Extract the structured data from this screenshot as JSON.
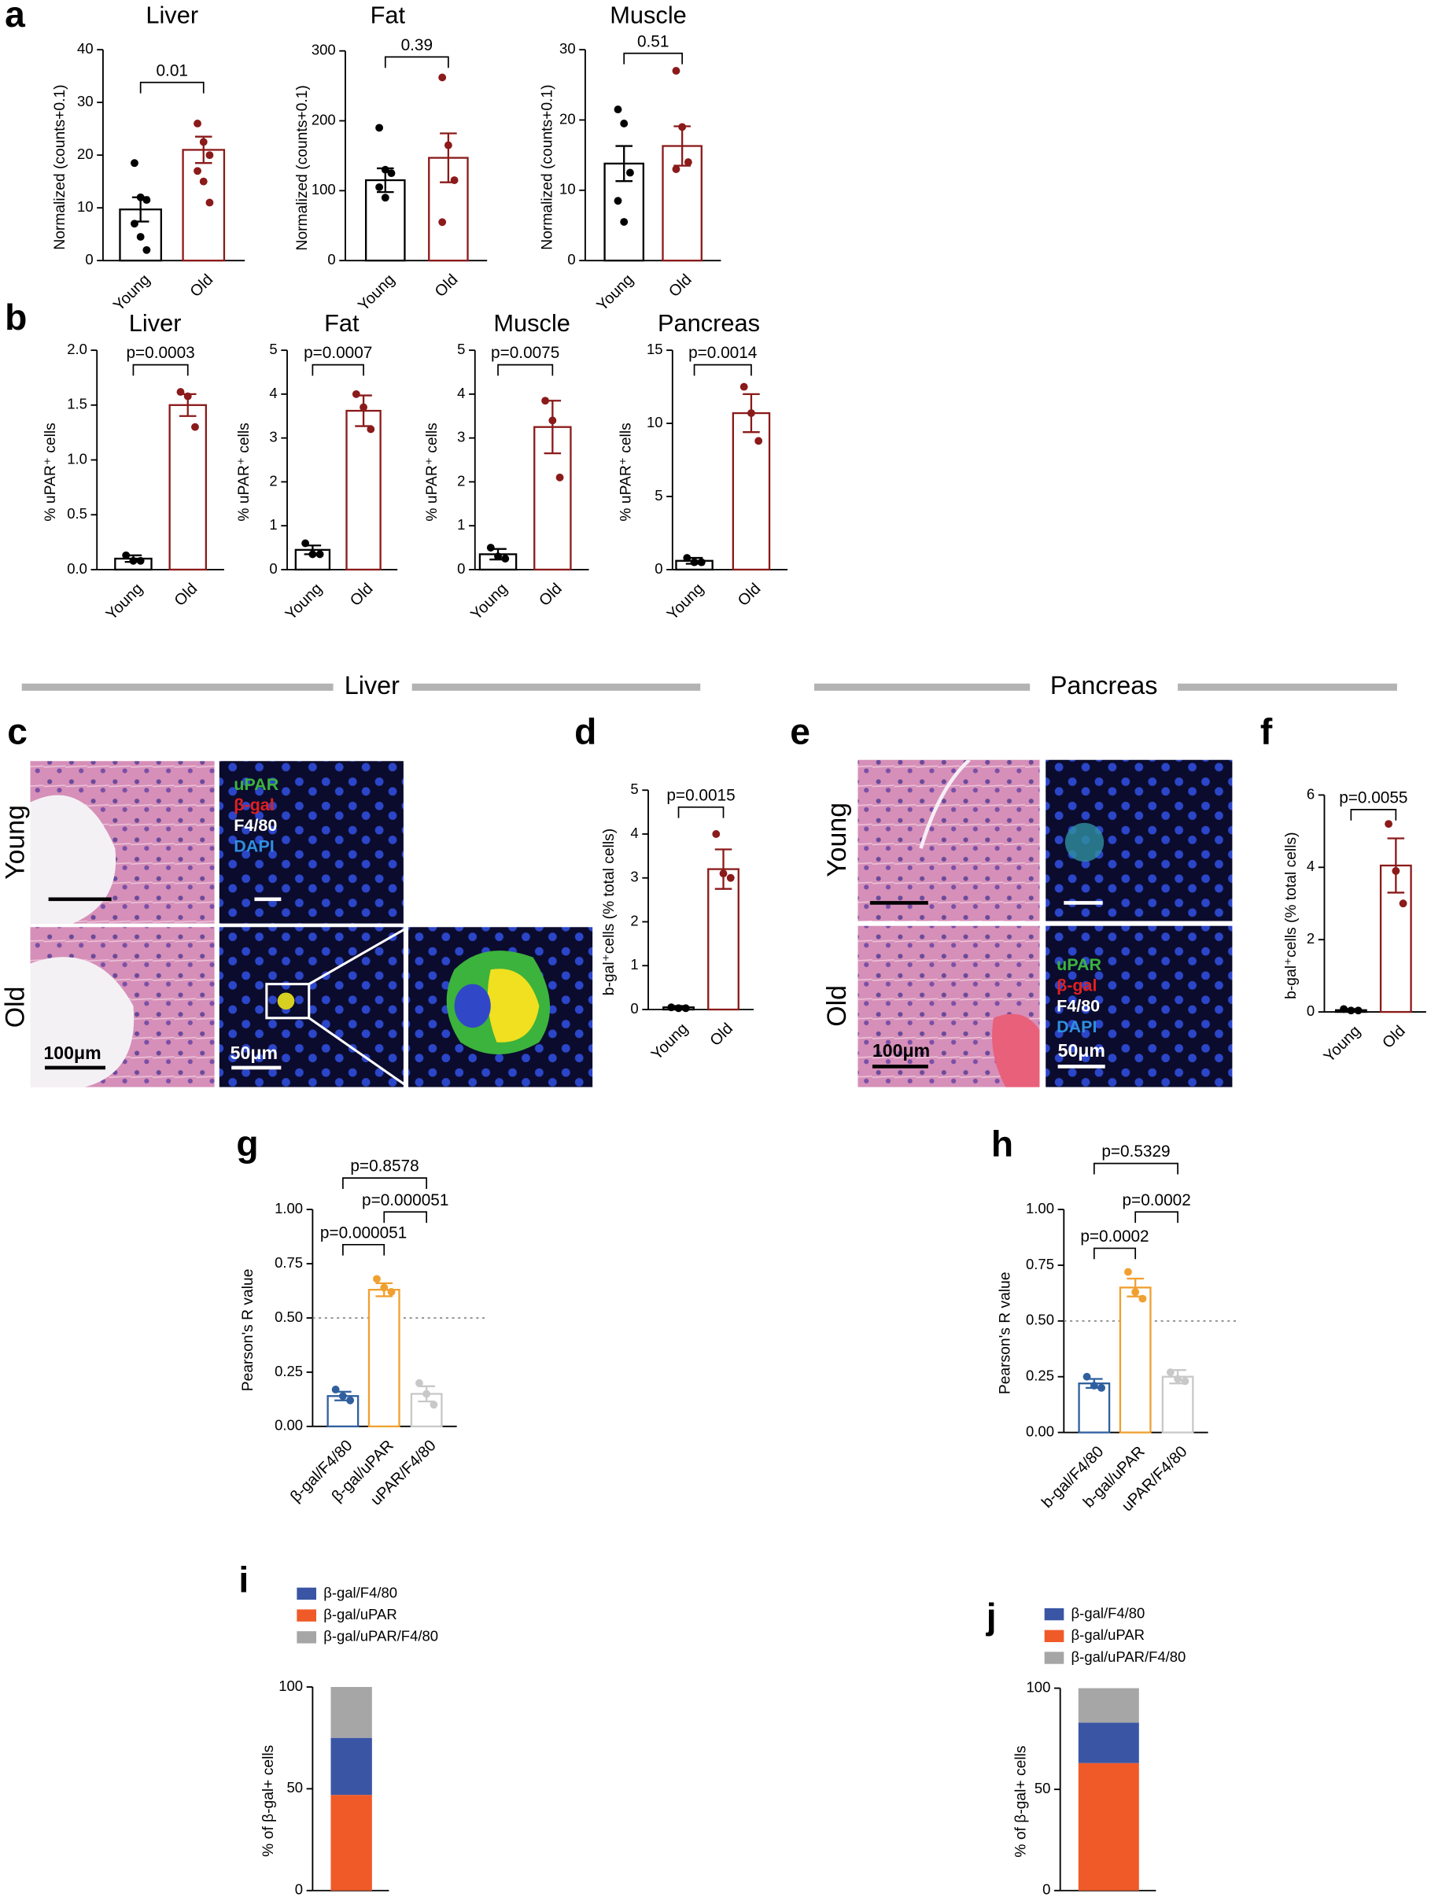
{
  "panels": [
    "a",
    "b",
    "c",
    "d",
    "e",
    "f",
    "g",
    "h",
    "i",
    "j"
  ],
  "sections": [
    "Liver",
    "Pancreas"
  ],
  "micrographs": {
    "c": {
      "rows": [
        "Young",
        "Old"
      ],
      "stains": [
        "uPAR",
        "β-gal",
        "F4/80",
        "DAPI"
      ],
      "scale_he": "100μm",
      "scale_fl": "50μm"
    },
    "e": {
      "rows": [
        "Young",
        "Old"
      ],
      "stains": [
        "uPAR",
        "β-gal",
        "F4/80",
        "DAPI"
      ],
      "scale_he": "100μm",
      "scale_fl": "50μm"
    }
  },
  "chart_data": [
    {
      "type": "bar",
      "title": "Liver",
      "ylabel": "Normalized (counts+0.1)",
      "categories": [
        "Young",
        "Old"
      ],
      "values": [
        9.7,
        21
      ],
      "errors": [
        2.3,
        2.5
      ],
      "points": [
        [
          18.5,
          12,
          11.5,
          7,
          4.5,
          2
        ],
        [
          26,
          22.5,
          20,
          17,
          15,
          11
        ]
      ],
      "colors": [
        "#000000",
        "#8b1a1a"
      ],
      "ylim": [
        0,
        40
      ],
      "yticks": [
        0,
        10,
        20,
        30,
        40
      ],
      "comparisons": [
        {
          "label": "0.01"
        }
      ]
    },
    {
      "type": "bar",
      "title": "Fat",
      "ylabel": "Normalized (counts+0.1)",
      "categories": [
        "Young",
        "Old"
      ],
      "values": [
        115,
        147
      ],
      "errors": [
        17,
        35
      ],
      "points": [
        [
          190,
          130,
          125,
          105,
          90
        ],
        [
          262,
          165,
          115,
          55
        ]
      ],
      "colors": [
        "#000000",
        "#8b1a1a"
      ],
      "ylim": [
        0,
        300
      ],
      "yticks": [
        0,
        100,
        200,
        300
      ],
      "comparisons": [
        {
          "label": "0.39"
        }
      ]
    },
    {
      "type": "bar",
      "title": "Muscle",
      "ylabel": "Normalized (counts+0.1)",
      "categories": [
        "Young",
        "Old"
      ],
      "values": [
        13.8,
        16.3
      ],
      "errors": [
        2.5,
        2.8
      ],
      "points": [
        [
          21.5,
          19.5,
          12.5,
          8.5,
          5.5
        ],
        [
          27,
          19,
          14,
          13
        ]
      ],
      "colors": [
        "#000000",
        "#8b1a1a"
      ],
      "ylim": [
        0,
        30
      ],
      "yticks": [
        0,
        10,
        20,
        30
      ],
      "comparisons": [
        {
          "label": "0.51"
        }
      ]
    },
    {
      "type": "bar",
      "title": "Liver",
      "ylabel": "% uPAR⁺ cells",
      "categories": [
        "Young",
        "Old"
      ],
      "values": [
        0.1,
        1.5
      ],
      "errors": [
        0.03,
        0.1
      ],
      "points": [
        [
          0.13,
          0.08,
          0.08
        ],
        [
          1.62,
          1.58,
          1.3
        ]
      ],
      "colors": [
        "#000000",
        "#8b1a1a"
      ],
      "ylim": [
        0,
        2
      ],
      "yticks": [
        {
          "value": 0,
          "label": "0.0"
        },
        0.5,
        {
          "value": 1,
          "label": "1.0"
        },
        1.5,
        {
          "value": 2,
          "label": "2.0"
        }
      ],
      "comparisons": [
        {
          "label": "p=0.0003"
        }
      ]
    },
    {
      "type": "bar",
      "title": "Fat",
      "ylabel": "% uPAR⁺ cells",
      "categories": [
        "Young",
        "Old"
      ],
      "values": [
        0.45,
        3.62
      ],
      "errors": [
        0.1,
        0.35
      ],
      "points": [
        [
          0.6,
          0.35,
          0.35
        ],
        [
          4.0,
          3.7,
          3.2
        ]
      ],
      "colors": [
        "#000000",
        "#8b1a1a"
      ],
      "ylim": [
        0,
        5
      ],
      "yticks": [
        0,
        1,
        2,
        3,
        4,
        5
      ],
      "comparisons": [
        {
          "label": "p=0.0007"
        }
      ]
    },
    {
      "type": "bar",
      "title": "Muscle",
      "ylabel": "% uPAR⁺ cells",
      "categories": [
        "Young",
        "Old"
      ],
      "values": [
        0.35,
        3.25
      ],
      "errors": [
        0.12,
        0.6
      ],
      "points": [
        [
          0.5,
          0.3,
          0.25
        ],
        [
          3.85,
          3.4,
          2.1
        ]
      ],
      "colors": [
        "#000000",
        "#8b1a1a"
      ],
      "ylim": [
        0,
        5
      ],
      "yticks": [
        0,
        1,
        2,
        3,
        4,
        5
      ],
      "comparisons": [
        {
          "label": "p=0.0075"
        }
      ]
    },
    {
      "type": "bar",
      "title": "Pancreas",
      "ylabel": "% uPAR⁺ cells",
      "categories": [
        "Young",
        "Old"
      ],
      "values": [
        0.6,
        10.7
      ],
      "errors": [
        0.2,
        1.3
      ],
      "points": [
        [
          0.8,
          0.5,
          0.5
        ],
        [
          12.5,
          10.7,
          8.8
        ]
      ],
      "colors": [
        "#000000",
        "#8b1a1a"
      ],
      "ylim": [
        0,
        15
      ],
      "yticks": [
        0,
        5,
        10,
        15
      ],
      "comparisons": [
        {
          "label": "p=0.0014"
        }
      ]
    },
    {
      "type": "bar",
      "ylabel": "b-gal⁺cells (% total cells)",
      "categories": [
        "Young",
        "Old"
      ],
      "values": [
        0.05,
        3.2
      ],
      "errors": [
        0.03,
        0.45
      ],
      "points": [
        [
          0.05,
          0.03,
          0.03
        ],
        [
          4.0,
          3.1,
          3.0
        ]
      ],
      "colors": [
        "#000000",
        "#8b1a1a"
      ],
      "ylim": [
        0,
        5
      ],
      "yticks": [
        0,
        1,
        2,
        3,
        4,
        5
      ],
      "comparisons": [
        {
          "label": "p=0.0015"
        }
      ]
    },
    {
      "type": "bar",
      "ylabel": "b-gal⁺cells (% total cells)",
      "categories": [
        "Young",
        "Old"
      ],
      "values": [
        0.05,
        4.05
      ],
      "errors": [
        0.03,
        0.75
      ],
      "points": [
        [
          0.08,
          0.04,
          0.04
        ],
        [
          5.2,
          3.9,
          3.0
        ]
      ],
      "colors": [
        "#000000",
        "#8b1a1a"
      ],
      "ylim": [
        0,
        6
      ],
      "yticks": [
        0,
        2,
        4,
        6
      ],
      "comparisons": [
        {
          "label": "p=0.0055"
        }
      ]
    },
    {
      "type": "bar",
      "ylabel": "Pearson's R value",
      "categories": [
        "β-gal/F4/80",
        "β-gal/uPAR",
        "uPAR/F4/80"
      ],
      "values": [
        0.14,
        0.63,
        0.15
      ],
      "errors": [
        0.02,
        0.03,
        0.035
      ],
      "points": [
        [
          0.17,
          0.14,
          0.12
        ],
        [
          0.68,
          0.64,
          0.62
        ],
        [
          0.2,
          0.15,
          0.1
        ]
      ],
      "colors": [
        "#2f5f9e",
        "#f0a030",
        "#c8c8c8"
      ],
      "ylim": [
        0,
        1
      ],
      "yticks": [
        {
          "value": 0,
          "label": "0.00"
        },
        0.25,
        {
          "value": 0.5,
          "label": "0.50"
        },
        0.75,
        {
          "value": 1,
          "label": "1.00"
        }
      ],
      "refline": 0.5,
      "comparisons": [
        {
          "label": "p=0.000051"
        },
        {
          "label": "p=0.000051"
        },
        {
          "label": "p=0.8578"
        }
      ]
    },
    {
      "type": "bar",
      "ylabel": "Pearson's R value",
      "categories": [
        "b-gal/F4/80",
        "b-gal/uPAR",
        "uPAR/F4/80"
      ],
      "values": [
        0.22,
        0.65,
        0.25
      ],
      "errors": [
        0.02,
        0.04,
        0.03
      ],
      "points": [
        [
          0.25,
          0.21,
          0.2
        ],
        [
          0.72,
          0.63,
          0.6
        ],
        [
          0.27,
          0.24,
          0.23
        ]
      ],
      "colors": [
        "#2f5f9e",
        "#f0a030",
        "#c8c8c8"
      ],
      "ylim": [
        0,
        1
      ],
      "yticks": [
        {
          "value": 0,
          "label": "0.00"
        },
        0.25,
        {
          "value": 0.5,
          "label": "0.50"
        },
        0.75,
        {
          "value": 1,
          "label": "1.00"
        }
      ],
      "refline": 0.5,
      "comparisons": [
        {
          "label": "p=0.0002"
        },
        {
          "label": "p=0.0002"
        },
        {
          "label": "p=0.5329"
        }
      ]
    },
    {
      "type": "stacked_bar",
      "ylabel": "% of β-gal+ cells",
      "ylim": [
        0,
        100
      ],
      "yticks": [
        0,
        50,
        100
      ],
      "series": [
        {
          "name": "β-gal/F4/80",
          "color": "#3a55a4",
          "values": [
            28
          ]
        },
        {
          "name": "β-gal/uPAR",
          "color": "#f05a28",
          "values": [
            47
          ]
        },
        {
          "name": "β-gal/uPAR/F4/80",
          "color": "#a6a6a6",
          "values": [
            25
          ]
        }
      ]
    },
    {
      "type": "stacked_bar",
      "ylabel": "% of β-gal+ cells",
      "ylim": [
        0,
        100
      ],
      "yticks": [
        0,
        50,
        100
      ],
      "series": [
        {
          "name": "β-gal/F4/80",
          "color": "#3a55a4",
          "values": [
            20
          ]
        },
        {
          "name": "β-gal/uPAR",
          "color": "#f05a28",
          "values": [
            63
          ]
        },
        {
          "name": "β-gal/uPAR/F4/80",
          "color": "#a6a6a6",
          "values": [
            17
          ]
        }
      ]
    }
  ]
}
